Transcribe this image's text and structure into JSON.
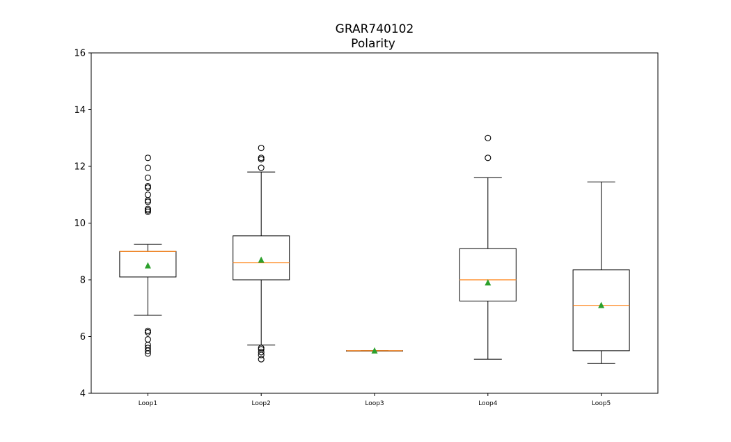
{
  "chart_data": {
    "type": "boxplot",
    "title_line1": "GRAR740102",
    "title_line2": "Polarity",
    "xlabel": "",
    "ylabel": "",
    "ylim": [
      4,
      16
    ],
    "yticks": [
      4,
      6,
      8,
      10,
      12,
      14,
      16
    ],
    "categories": [
      "Loop1",
      "Loop2",
      "Loop3",
      "Loop4",
      "Loop5"
    ],
    "series": [
      {
        "name": "Loop1",
        "whisker_low": 6.75,
        "q1": 8.1,
        "median": 9.0,
        "q3": 9.0,
        "whisker_high": 9.25,
        "mean": 8.5,
        "outliers": [
          5.4,
          5.5,
          5.6,
          5.7,
          5.9,
          6.15,
          6.2,
          10.4,
          10.45,
          10.5,
          10.75,
          10.8,
          11.0,
          11.25,
          11.3,
          11.6,
          11.95,
          12.3
        ]
      },
      {
        "name": "Loop2",
        "whisker_low": 5.7,
        "q1": 8.0,
        "median": 8.6,
        "q3": 9.55,
        "whisker_high": 11.8,
        "mean": 8.7,
        "outliers": [
          5.2,
          5.35,
          5.45,
          5.55,
          5.6,
          11.95,
          12.25,
          12.3,
          12.65
        ]
      },
      {
        "name": "Loop3",
        "whisker_low": 5.5,
        "q1": 5.5,
        "median": 5.5,
        "q3": 5.5,
        "whisker_high": 5.5,
        "mean": 5.5,
        "outliers": []
      },
      {
        "name": "Loop4",
        "whisker_low": 5.2,
        "q1": 7.25,
        "median": 8.0,
        "q3": 9.1,
        "whisker_high": 11.6,
        "mean": 7.9,
        "outliers": [
          12.3,
          13.0
        ]
      },
      {
        "name": "Loop5",
        "whisker_low": 5.05,
        "q1": 5.5,
        "median": 7.1,
        "q3": 8.35,
        "whisker_high": 11.45,
        "mean": 7.1,
        "outliers": []
      }
    ],
    "colors": {
      "box": "#000000",
      "median": "#ff7f0e",
      "mean": "#2ca02c",
      "outlier": "#000000",
      "axes": "#000000"
    }
  }
}
